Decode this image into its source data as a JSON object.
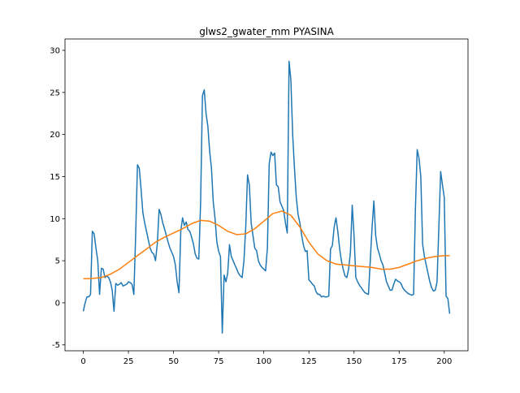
{
  "chart_data": {
    "type": "line",
    "title": "glws2_gwater_mm PYASINA",
    "x": [
      0,
      1,
      2,
      3,
      4,
      5,
      6,
      7,
      8,
      9,
      10,
      11,
      12,
      13,
      14,
      15,
      16,
      17,
      18,
      19,
      20,
      21,
      22,
      23,
      24,
      25,
      26,
      27,
      28,
      29,
      30,
      31,
      32,
      33,
      34,
      35,
      36,
      37,
      38,
      39,
      40,
      41,
      42,
      43,
      44,
      45,
      46,
      47,
      48,
      49,
      50,
      51,
      52,
      53,
      54,
      55,
      56,
      57,
      58,
      59,
      60,
      61,
      62,
      63,
      64,
      65,
      66,
      67,
      68,
      69,
      70,
      71,
      72,
      73,
      74,
      75,
      76,
      77,
      78,
      79,
      80,
      81,
      82,
      83,
      84,
      85,
      86,
      87,
      88,
      89,
      90,
      91,
      92,
      93,
      94,
      95,
      96,
      97,
      98,
      99,
      100,
      101,
      102,
      103,
      104,
      105,
      106,
      107,
      108,
      109,
      110,
      111,
      112,
      113,
      114,
      115,
      116,
      117,
      118,
      119,
      120,
      121,
      122,
      123,
      124,
      125,
      126,
      127,
      128,
      129,
      130,
      131,
      132,
      133,
      134,
      135,
      136,
      137,
      138,
      139,
      140,
      141,
      142,
      143,
      144,
      145,
      146,
      147,
      148,
      149,
      150,
      151,
      152,
      153,
      154,
      155,
      156,
      157,
      158,
      159,
      160,
      161,
      162,
      163,
      164,
      165,
      166,
      167,
      168,
      169,
      170,
      171,
      172,
      173,
      174,
      175,
      176,
      177,
      178,
      179,
      180,
      181,
      182,
      183,
      184,
      185,
      186,
      187,
      188,
      189,
      190,
      191,
      192,
      193,
      194,
      195,
      196,
      197,
      198,
      199,
      200,
      201,
      202,
      203
    ],
    "series": [
      {
        "color": "#1f77b4",
        "values": [
          -1.0,
          0,
          0.7,
          0.7,
          1.0,
          8.5,
          8.2,
          6.5,
          5.0,
          1.0,
          4.1,
          4.0,
          3.0,
          3.2,
          3.0,
          2.5,
          1.5,
          -1.0,
          2.3,
          2.1,
          2.2,
          2.4,
          2.0,
          2.1,
          2.2,
          2.5,
          2.4,
          2.2,
          1.0,
          8,
          16.4,
          16,
          13.5,
          10.7,
          9.5,
          8.5,
          7.5,
          6.5,
          6,
          5.8,
          5,
          7,
          11.1,
          10.5,
          9.5,
          8.8,
          8,
          7.2,
          6.5,
          6,
          5.5,
          4.5,
          2.5,
          1.2,
          8.5,
          10.1,
          9.2,
          9.6,
          8.7,
          8.5,
          7.8,
          7,
          5.8,
          5.3,
          5.2,
          12,
          24.6,
          25.3,
          22.5,
          21,
          18,
          16,
          12,
          10,
          7.2,
          6.1,
          5.5,
          -3.6,
          3.3,
          2.5,
          3.5,
          6.9,
          5.5,
          5,
          4.5,
          4,
          3.5,
          3.2,
          3.0,
          5,
          9,
          15.2,
          14,
          9.5,
          8,
          6.5,
          6.2,
          5,
          4.5,
          4.2,
          4,
          3.8,
          6.5,
          16.5,
          17.9,
          17.5,
          17.8,
          14,
          13.8,
          12,
          11.5,
          11,
          9.5,
          8.3,
          28.7,
          26.5,
          20,
          16,
          12.5,
          10.5,
          9.5,
          8,
          6.8,
          6.1,
          6.2,
          2.7,
          2.5,
          2.2,
          2,
          1.3,
          1.0,
          1.0,
          0.7,
          0.8,
          0.7,
          0.7,
          0.8,
          6.4,
          6.8,
          9,
          10.1,
          8.5,
          6.5,
          5,
          4,
          3.2,
          3,
          4,
          6,
          11.6,
          8,
          3,
          2.5,
          2.1,
          1.8,
          1.5,
          1.2,
          1.1,
          1.0,
          5,
          9,
          12.1,
          8,
          6.5,
          5.8,
          5,
          4.5,
          3.5,
          2.5,
          2,
          1.5,
          1.5,
          2.2,
          2.8,
          2.6,
          2.5,
          2.3,
          1.8,
          1.5,
          1.3,
          1.1,
          1,
          0.9,
          1,
          11,
          18.2,
          17.2,
          15,
          7,
          5.5,
          4.5,
          3.5,
          2.5,
          1.8,
          1.4,
          1.5,
          2.5,
          9,
          15.6,
          14,
          12.5,
          0.8,
          0.5,
          -1.3
        ]
      },
      {
        "color": "#ff7f0e",
        "x": [
          0,
          5,
          10,
          15,
          20,
          25,
          30,
          35,
          40,
          45,
          50,
          55,
          60,
          65,
          70,
          75,
          80,
          85,
          90,
          95,
          100,
          105,
          110,
          115,
          120,
          125,
          130,
          135,
          140,
          145,
          150,
          155,
          160,
          165,
          170,
          175,
          180,
          185,
          190,
          195,
          200,
          203
        ],
        "values": [
          2.85,
          2.9,
          3.0,
          3.4,
          4.0,
          4.8,
          5.6,
          6.4,
          7.2,
          7.8,
          8.3,
          8.8,
          9.4,
          9.8,
          9.7,
          9.2,
          8.5,
          8.1,
          8.2,
          8.8,
          9.7,
          10.6,
          10.9,
          10.4,
          9.0,
          7.2,
          5.8,
          5.0,
          4.6,
          4.5,
          4.4,
          4.3,
          4.2,
          4.0,
          4.0,
          4.2,
          4.6,
          5.0,
          5.3,
          5.5,
          5.6,
          5.6
        ]
      }
    ],
    "xlim": [
      -10.15,
      213.15
    ],
    "ylim": [
      -5.7,
      31.35
    ],
    "xticks": [
      0,
      25,
      50,
      75,
      100,
      125,
      150,
      175,
      200
    ],
    "yticks": [
      -5,
      0,
      5,
      10,
      15,
      20,
      25,
      30
    ]
  }
}
